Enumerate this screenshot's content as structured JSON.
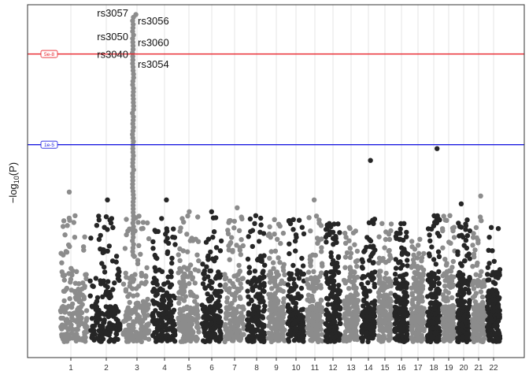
{
  "chart_data": {
    "type": "scatter",
    "subtype": "manhattan",
    "title": "",
    "xlabel": "",
    "ylabel": "−log",
    "ylabel_sub": "10",
    "ylabel_arg": "(P)",
    "y_tick_labels_shown": false,
    "grid": "vertical lines at chromosome centers",
    "chromosomes": [
      "1",
      "2",
      "3",
      "4",
      "5",
      "6",
      "7",
      "8",
      "9",
      "10",
      "11",
      "12",
      "13",
      "14",
      "15",
      "16",
      "17",
      "18",
      "19",
      "20",
      "21",
      "22"
    ],
    "colors": {
      "odd": "#8c8c8c",
      "even": "#262626",
      "genome_wide_line": "#e8232a",
      "suggestive_line": "#1c1ce0",
      "grid": "#e4e4e4",
      "frame": "#333333"
    },
    "thresholds": [
      {
        "label": "5e-8",
        "value": 7.3,
        "color": "#e8232a"
      },
      {
        "label": "1e-5",
        "value": 5.0,
        "color": "#1c1ce0"
      }
    ],
    "ylim": [
      -0.4,
      8.55
    ],
    "chrom_peaks": [
      {
        "chr": "1",
        "max": 3.8
      },
      {
        "chr": "2",
        "max": 3.6
      },
      {
        "chr": "3",
        "max": 8.3
      },
      {
        "chr": "4",
        "max": 3.6
      },
      {
        "chr": "5",
        "max": 3.3
      },
      {
        "chr": "6",
        "max": 3.3
      },
      {
        "chr": "7",
        "max": 3.4
      },
      {
        "chr": "8",
        "max": 3.2
      },
      {
        "chr": "9",
        "max": 3.1
      },
      {
        "chr": "10",
        "max": 3.1
      },
      {
        "chr": "11",
        "max": 3.6
      },
      {
        "chr": "12",
        "max": 3.0
      },
      {
        "chr": "13",
        "max": 2.9
      },
      {
        "chr": "14",
        "max": 4.6
      },
      {
        "chr": "15",
        "max": 3.0
      },
      {
        "chr": "16",
        "max": 3.0
      },
      {
        "chr": "17",
        "max": 2.6
      },
      {
        "chr": "18",
        "max": 4.9
      },
      {
        "chr": "19",
        "max": 3.2
      },
      {
        "chr": "20",
        "max": 3.5
      },
      {
        "chr": "21",
        "max": 3.7
      },
      {
        "chr": "22",
        "max": 2.9
      }
    ],
    "annotations": [
      {
        "label": "rs3057",
        "chr": "3",
        "y": 8.35,
        "side": "left"
      },
      {
        "label": "rs3056",
        "chr": "3",
        "y": 8.15,
        "side": "right"
      },
      {
        "label": "rs3050",
        "chr": "3",
        "y": 7.75,
        "side": "left"
      },
      {
        "label": "rs3060",
        "chr": "3",
        "y": 7.6,
        "side": "right"
      },
      {
        "label": "rs3040",
        "chr": "3",
        "y": 7.3,
        "side": "left"
      },
      {
        "label": "rs3054",
        "chr": "3",
        "y": 7.05,
        "side": "right"
      }
    ]
  }
}
